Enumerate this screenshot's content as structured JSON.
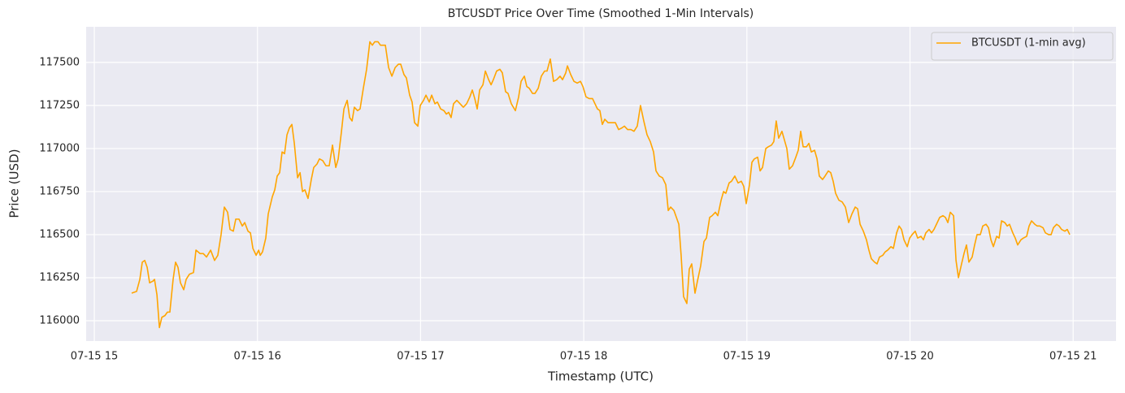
{
  "chart_data": {
    "type": "line",
    "title": "BTCUSDT Price Over Time (Smoothed 1-Min Intervals)",
    "x_label": "Timestamp (UTC)",
    "y_label": "Price (USD)",
    "grid": true,
    "legend": "upper right",
    "xlim": [
      14.95,
      21.263
    ],
    "ylim": [
      115882,
      117707
    ],
    "xticks": [
      {
        "value": 15,
        "label": "07-15 15"
      },
      {
        "value": 16,
        "label": "07-15 16"
      },
      {
        "value": 17,
        "label": "07-15 17"
      },
      {
        "value": 18,
        "label": "07-15 18"
      },
      {
        "value": 19,
        "label": "07-15 19"
      },
      {
        "value": 20,
        "label": "07-15 20"
      },
      {
        "value": 21,
        "label": "07-15 21"
      }
    ],
    "yticks": [
      116000,
      116250,
      116500,
      116750,
      117000,
      117250,
      117500
    ],
    "x": [
      15.229,
      15.259,
      15.279,
      15.294,
      15.309,
      15.324,
      15.339,
      15.359,
      15.369,
      15.384,
      15.399,
      15.414,
      15.433,
      15.448,
      15.463,
      15.483,
      15.498,
      15.513,
      15.528,
      15.548,
      15.563,
      15.583,
      15.608,
      15.623,
      15.648,
      15.668,
      15.688,
      15.713,
      15.737,
      15.757,
      15.777,
      15.797,
      15.817,
      15.832,
      15.852,
      15.867,
      15.887,
      15.907,
      15.922,
      15.942,
      15.957,
      15.972,
      15.992,
      16.007,
      16.017,
      16.031,
      16.051,
      16.066,
      16.091,
      16.106,
      16.121,
      16.136,
      16.151,
      16.166,
      16.181,
      16.196,
      16.211,
      16.226,
      16.246,
      16.261,
      16.276,
      16.291,
      16.31,
      16.33,
      16.345,
      16.365,
      16.38,
      16.4,
      16.42,
      16.44,
      16.46,
      16.48,
      16.495,
      16.515,
      16.53,
      16.55,
      16.565,
      16.58,
      16.594,
      16.614,
      16.629,
      16.649,
      16.669,
      16.689,
      16.704,
      16.719,
      16.739,
      16.754,
      16.784,
      16.804,
      16.824,
      16.844,
      16.864,
      16.878,
      16.898,
      16.913,
      16.933,
      16.948,
      16.963,
      16.983,
      16.998,
      17.018,
      17.033,
      17.053,
      17.068,
      17.088,
      17.103,
      17.123,
      17.143,
      17.158,
      17.172,
      17.187,
      17.202,
      17.222,
      17.242,
      17.262,
      17.282,
      17.302,
      17.317,
      17.332,
      17.347,
      17.362,
      17.382,
      17.397,
      17.417,
      17.432,
      17.446,
      17.466,
      17.486,
      17.501,
      17.521,
      17.536,
      17.556,
      17.581,
      17.601,
      17.616,
      17.636,
      17.651,
      17.666,
      17.686,
      17.701,
      17.721,
      17.74,
      17.76,
      17.775,
      17.795,
      17.815,
      17.835,
      17.855,
      17.87,
      17.89,
      17.9,
      17.92,
      17.94,
      17.96,
      17.98,
      17.995,
      18.014,
      18.034,
      18.054,
      18.069,
      18.084,
      18.099,
      18.114,
      18.129,
      18.149,
      18.169,
      18.194,
      18.214,
      18.234,
      18.249,
      18.269,
      18.289,
      18.308,
      18.328,
      18.348,
      18.368,
      18.388,
      18.408,
      18.428,
      18.443,
      18.463,
      18.483,
      18.503,
      18.518,
      18.533,
      18.553,
      18.568,
      18.583,
      18.597,
      18.612,
      18.632,
      18.647,
      18.662,
      18.682,
      18.697,
      18.717,
      18.737,
      18.752,
      18.772,
      18.787,
      18.807,
      18.822,
      18.842,
      18.857,
      18.871,
      18.891,
      18.906,
      18.926,
      18.946,
      18.966,
      18.981,
      18.996,
      19.016,
      19.031,
      19.046,
      19.066,
      19.081,
      19.096,
      19.116,
      19.131,
      19.151,
      19.165,
      19.18,
      19.195,
      19.215,
      19.23,
      19.245,
      19.26,
      19.28,
      19.3,
      19.315,
      19.33,
      19.345,
      19.365,
      19.38,
      19.395,
      19.415,
      19.43,
      19.444,
      19.464,
      19.479,
      19.499,
      19.514,
      19.529,
      19.544,
      19.564,
      19.584,
      19.604,
      19.624,
      19.644,
      19.664,
      19.679,
      19.694,
      19.714,
      19.733,
      19.748,
      19.763,
      19.783,
      19.798,
      19.813,
      19.833,
      19.848,
      19.863,
      19.883,
      19.898,
      19.918,
      19.933,
      19.948,
      19.963,
      19.983,
      19.998,
      20.013,
      20.032,
      20.047,
      20.067,
      20.082,
      20.097,
      20.117,
      20.132,
      20.147,
      20.162,
      20.182,
      20.202,
      20.217,
      20.232,
      20.247,
      20.267,
      20.282,
      20.297,
      20.316,
      20.331,
      20.346,
      20.361,
      20.381,
      20.396,
      20.411,
      20.431,
      20.446,
      20.466,
      20.481,
      20.496,
      20.511,
      20.531,
      20.546,
      20.561,
      20.581,
      20.596,
      20.61,
      20.63,
      20.645,
      20.66,
      20.68,
      20.695,
      20.715,
      20.73,
      20.745,
      20.765,
      20.78,
      20.795,
      20.815,
      20.83,
      20.85,
      20.865,
      20.879,
      20.899,
      20.914,
      20.929,
      20.949,
      20.964,
      20.979
    ],
    "series": [
      {
        "name": "BTCUSDT (1-min avg)",
        "color": "#ffa500",
        "values": [
          116160,
          116170,
          116240,
          116340,
          116350,
          116310,
          116220,
          116230,
          116240,
          116150,
          115960,
          116020,
          116030,
          116050,
          116050,
          116240,
          116340,
          116310,
          116220,
          116180,
          116240,
          116270,
          116280,
          116410,
          116390,
          116390,
          116370,
          116410,
          116350,
          116380,
          116500,
          116660,
          116630,
          116530,
          116520,
          116590,
          116590,
          116550,
          116570,
          116520,
          116510,
          116420,
          116380,
          116410,
          116380,
          116400,
          116480,
          116620,
          116720,
          116760,
          116840,
          116860,
          116980,
          116970,
          117080,
          117120,
          117140,
          117030,
          116830,
          116860,
          116750,
          116760,
          116710,
          116820,
          116890,
          116910,
          116940,
          116930,
          116900,
          116900,
          117020,
          116890,
          116940,
          117100,
          117230,
          117280,
          117180,
          117160,
          117240,
          117220,
          117230,
          117350,
          117460,
          117620,
          117600,
          117620,
          117620,
          117600,
          117600,
          117470,
          117420,
          117470,
          117490,
          117490,
          117430,
          117410,
          117310,
          117270,
          117150,
          117130,
          117250,
          117280,
          117310,
          117270,
          117310,
          117260,
          117270,
          117230,
          117220,
          117200,
          117210,
          117180,
          117260,
          117280,
          117260,
          117240,
          117260,
          117300,
          117340,
          117290,
          117230,
          117340,
          117370,
          117450,
          117400,
          117370,
          117400,
          117450,
          117460,
          117440,
          117330,
          117320,
          117260,
          117220,
          117300,
          117390,
          117420,
          117360,
          117350,
          117320,
          117320,
          117350,
          117420,
          117450,
          117450,
          117520,
          117390,
          117400,
          117420,
          117400,
          117440,
          117480,
          117430,
          117390,
          117380,
          117390,
          117360,
          117300,
          117290,
          117290,
          117260,
          117230,
          117220,
          117140,
          117170,
          117150,
          117150,
          117150,
          117110,
          117120,
          117130,
          117110,
          117110,
          117100,
          117130,
          117250,
          117160,
          117080,
          117040,
          116980,
          116870,
          116840,
          116830,
          116790,
          116640,
          116660,
          116640,
          116600,
          116560,
          116380,
          116140,
          116100,
          116300,
          116330,
          116160,
          116230,
          116320,
          116460,
          116480,
          116600,
          116610,
          116630,
          116610,
          116700,
          116750,
          116740,
          116800,
          116810,
          116840,
          116800,
          116810,
          116780,
          116680,
          116790,
          116920,
          116940,
          116950,
          116870,
          116890,
          117000,
          117010,
          117020,
          117040,
          117160,
          117060,
          117100,
          117050,
          117000,
          116880,
          116900,
          116950,
          116990,
          117100,
          117010,
          117010,
          117030,
          116980,
          116990,
          116940,
          116840,
          116820,
          116840,
          116870,
          116860,
          116810,
          116740,
          116700,
          116690,
          116660,
          116570,
          116620,
          116660,
          116650,
          116560,
          116520,
          116470,
          116410,
          116360,
          116340,
          116330,
          116370,
          116380,
          116400,
          116410,
          116430,
          116420,
          116510,
          116550,
          116530,
          116470,
          116430,
          116480,
          116500,
          116520,
          116480,
          116490,
          116470,
          116510,
          116530,
          116510,
          116530,
          116560,
          116600,
          116610,
          116600,
          116570,
          116630,
          116610,
          116350,
          116250,
          116330,
          116390,
          116440,
          116340,
          116370,
          116440,
          116500,
          116500,
          116550,
          116560,
          116540,
          116470,
          116430,
          116490,
          116480,
          116580,
          116570,
          116550,
          116560,
          116510,
          116480,
          116440,
          116470,
          116480,
          116490,
          116550,
          116580,
          116560,
          116550,
          116550,
          116540,
          116510,
          116500,
          116500,
          116540,
          116560,
          116550,
          116530,
          116520,
          116530,
          116500
        ]
      }
    ]
  }
}
